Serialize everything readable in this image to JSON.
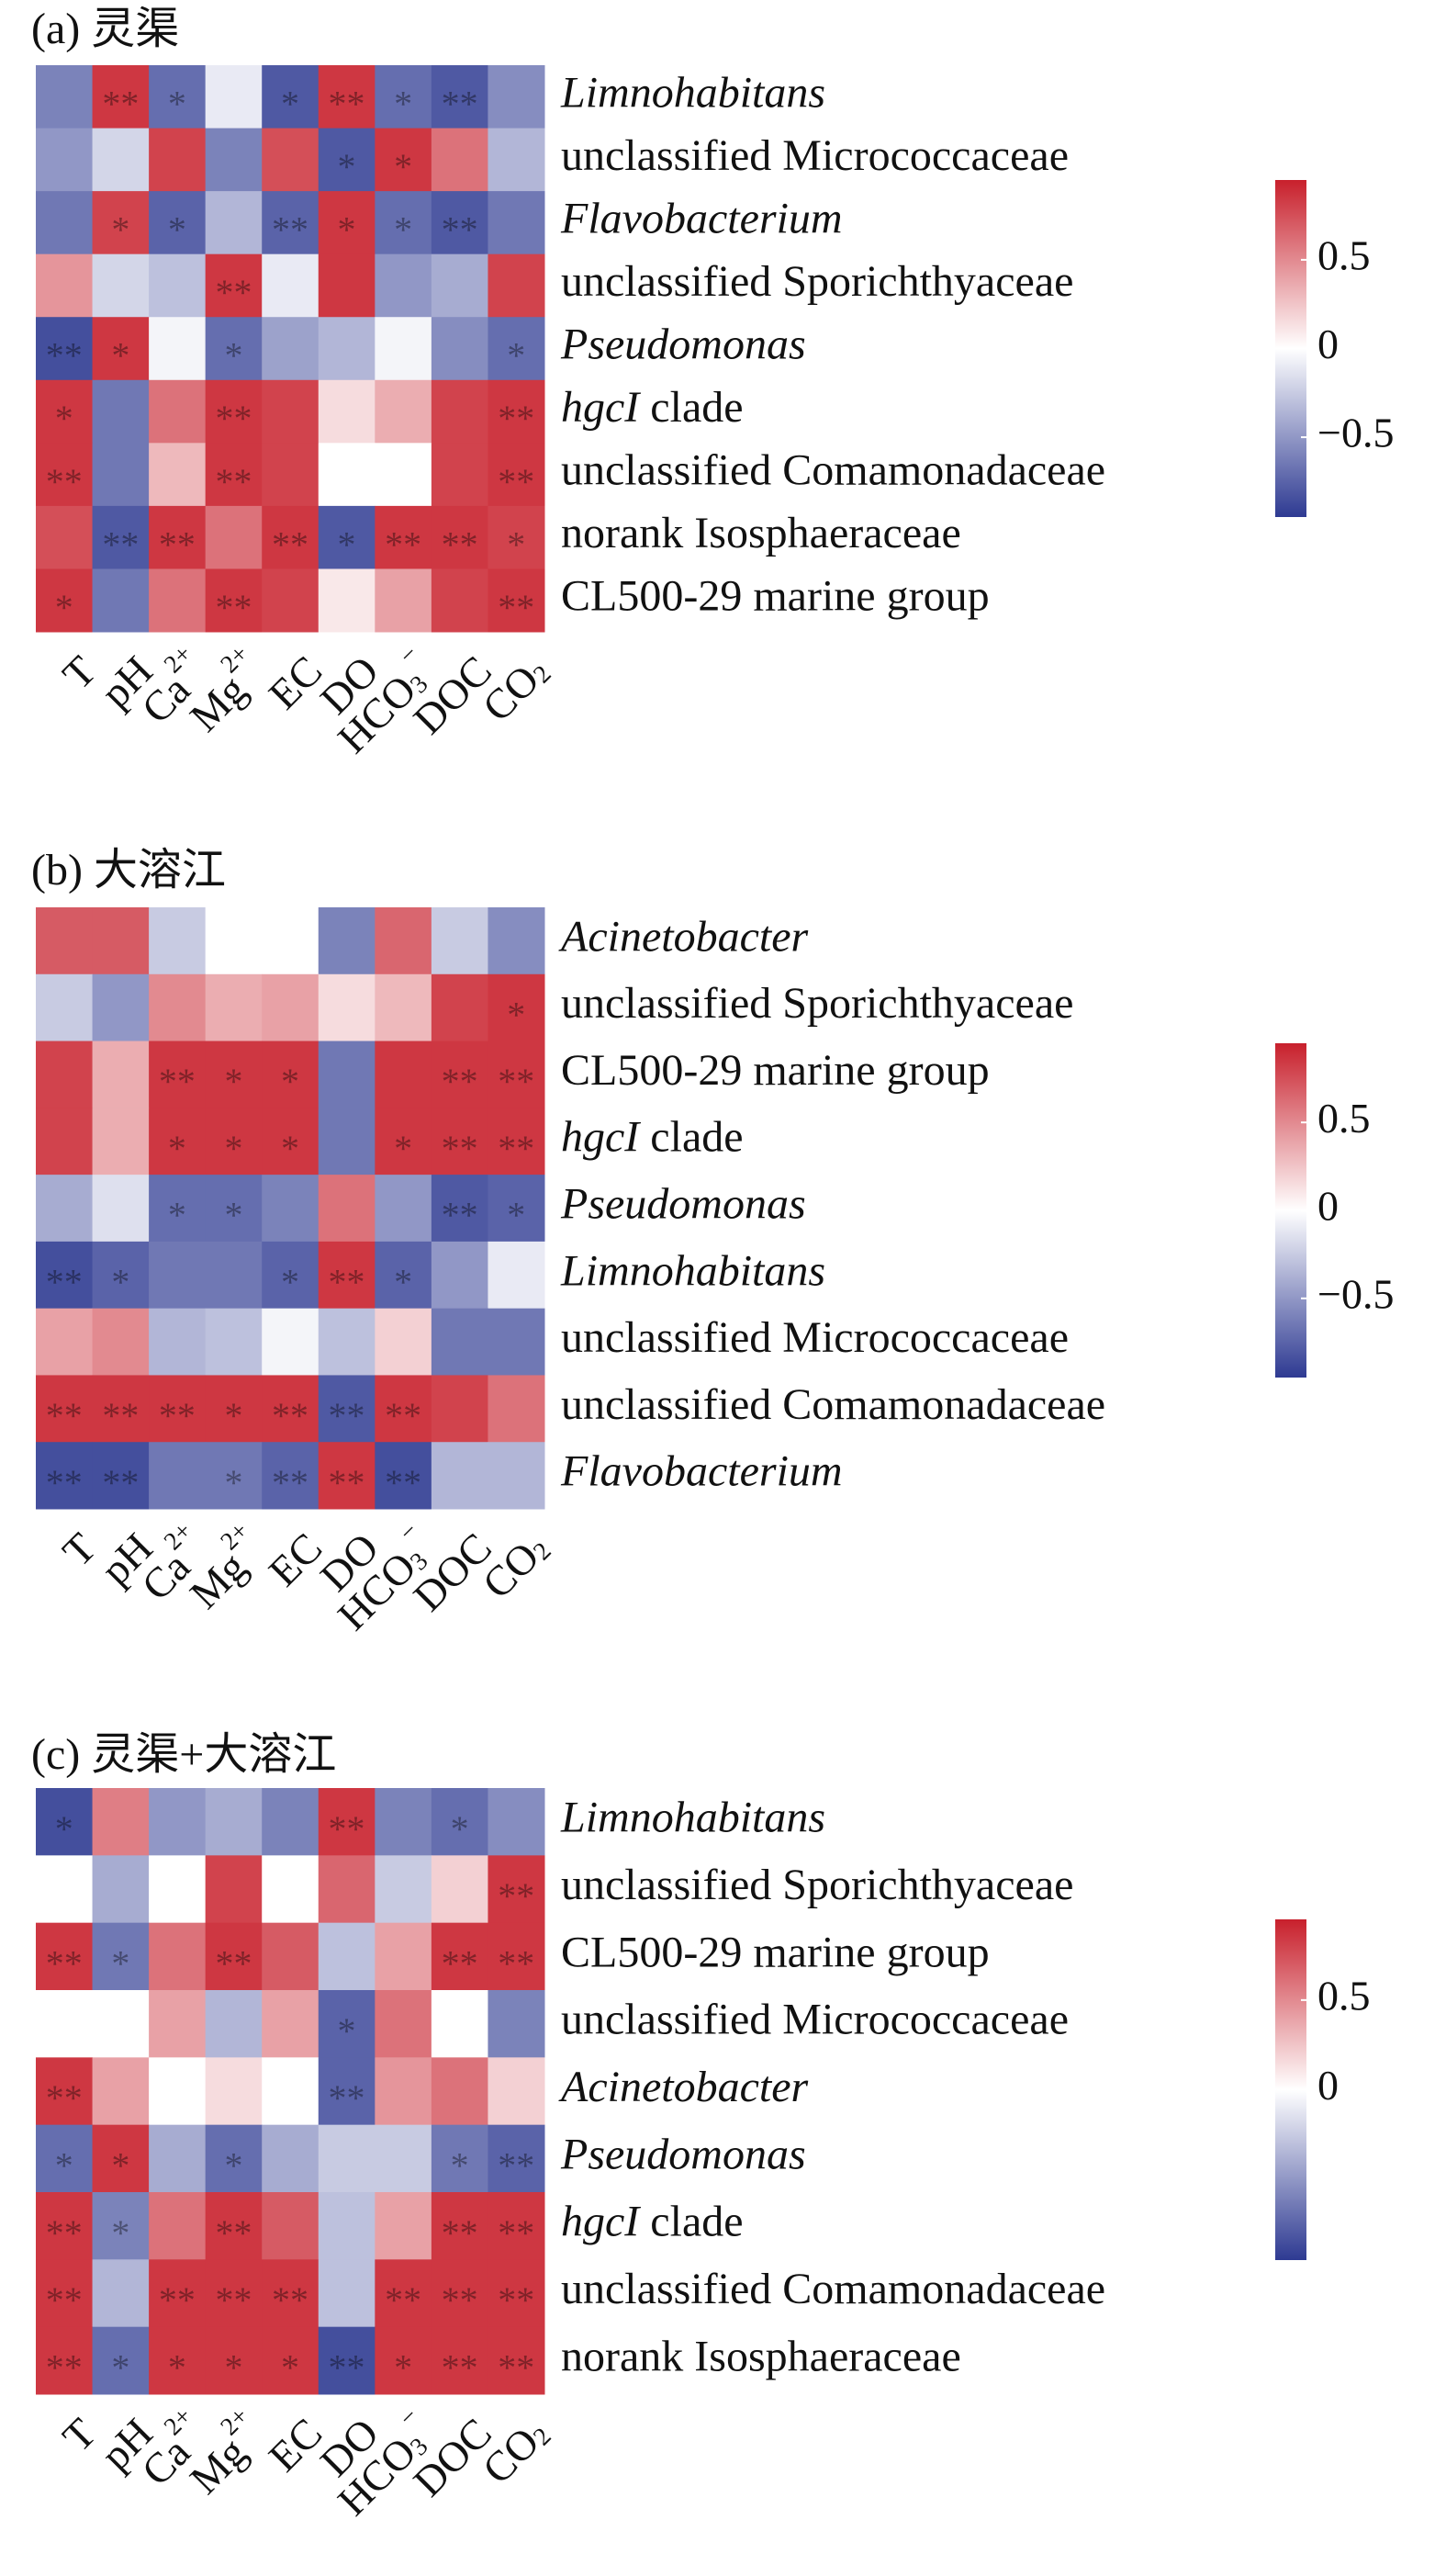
{
  "chart_data": [
    {
      "type": "heatmap",
      "title": "(a) 灵渠",
      "rows": [
        [
          {
            "text": "Limnohabitans",
            "italic": true
          }
        ],
        [
          {
            "text": "unclassified Micrococcaceae"
          }
        ],
        [
          {
            "text": "Flavobacterium",
            "italic": true
          }
        ],
        [
          {
            "text": "unclassified Sporichthyaceae"
          }
        ],
        [
          {
            "text": "Pseudomonas",
            "italic": true
          }
        ],
        [
          {
            "text": "hgcI",
            "italic": true
          },
          {
            "text": " clade"
          }
        ],
        [
          {
            "text": "unclassified Comamonadaceae"
          }
        ],
        [
          {
            "text": "norank Isosphaeraceae"
          }
        ],
        [
          {
            "text": "CL500-29 marine group"
          }
        ]
      ],
      "columns": [
        [
          {
            "text": "T"
          }
        ],
        [
          {
            "text": "pH"
          }
        ],
        [
          {
            "text": "Ca"
          },
          {
            "text": "2+",
            "sup": true
          }
        ],
        [
          {
            "text": "Mg"
          },
          {
            "text": "2+",
            "sup": true
          }
        ],
        [
          {
            "text": "EC"
          }
        ],
        [
          {
            "text": "DO"
          }
        ],
        [
          {
            "text": "HCO"
          },
          {
            "text": "3",
            "sub": true
          },
          {
            "text": "−",
            "sup": true
          }
        ],
        [
          {
            "text": "DOC"
          }
        ],
        [
          {
            "text": "CO"
          },
          {
            "text": "2",
            "sub": true
          }
        ]
      ],
      "values": [
        [
          -0.6,
          0.85,
          -0.7,
          -0.1,
          -0.8,
          0.85,
          -0.7,
          -0.8,
          -0.55
        ],
        [
          -0.5,
          -0.2,
          0.8,
          -0.6,
          0.75,
          -0.8,
          0.85,
          0.6,
          -0.35
        ],
        [
          -0.65,
          0.8,
          -0.75,
          -0.35,
          -0.75,
          0.85,
          -0.7,
          -0.8,
          -0.65
        ],
        [
          0.45,
          -0.2,
          -0.3,
          0.85,
          -0.1,
          0.85,
          -0.5,
          -0.4,
          0.8
        ],
        [
          -0.85,
          0.85,
          -0.05,
          -0.7,
          -0.45,
          -0.35,
          -0.05,
          -0.55,
          -0.7
        ],
        [
          0.85,
          -0.65,
          0.6,
          0.85,
          0.8,
          0.15,
          0.35,
          0.8,
          0.85
        ],
        [
          0.85,
          -0.65,
          0.3,
          0.85,
          0.8,
          0,
          0,
          0.8,
          0.85
        ],
        [
          0.75,
          -0.8,
          0.85,
          0.6,
          0.85,
          -0.8,
          0.85,
          0.85,
          0.8
        ],
        [
          0.85,
          -0.65,
          0.6,
          0.85,
          0.8,
          0.1,
          0.4,
          0.8,
          0.85
        ]
      ],
      "stars": [
        [
          null,
          "**",
          "*",
          null,
          "*",
          "**",
          "*",
          "**",
          null
        ],
        [
          null,
          null,
          null,
          null,
          null,
          "*",
          "*",
          null,
          null
        ],
        [
          null,
          "*",
          "*",
          null,
          "**",
          "*",
          "*",
          "**",
          null
        ],
        [
          null,
          null,
          null,
          "**",
          null,
          null,
          null,
          null,
          null
        ],
        [
          "**",
          "*",
          null,
          "*",
          null,
          null,
          null,
          null,
          "*"
        ],
        [
          "*",
          null,
          null,
          "**",
          null,
          null,
          null,
          null,
          "**"
        ],
        [
          "**",
          null,
          null,
          "**",
          null,
          null,
          null,
          null,
          "**"
        ],
        [
          null,
          "**",
          "**",
          null,
          "**",
          "*",
          "**",
          "**",
          "*"
        ],
        [
          "*",
          null,
          null,
          "**",
          null,
          null,
          null,
          null,
          "**"
        ]
      ],
      "zlim": [
        -0.95,
        0.95
      ],
      "colors": {
        "low": "#2e3a92",
        "mid": "#ffffff",
        "high": "#c8202c"
      },
      "colorbar_ticks": [
        0.5,
        0,
        {
          "value": -0.5,
          "label": "−0.5"
        }
      ]
    },
    {
      "type": "heatmap",
      "title": "(b) 大溶江",
      "rows": [
        [
          {
            "text": "Acinetobacter",
            "italic": true
          }
        ],
        [
          {
            "text": "unclassified Sporichthyaceae"
          }
        ],
        [
          {
            "text": "CL500-29 marine group"
          }
        ],
        [
          {
            "text": "hgcI",
            "italic": true
          },
          {
            "text": " clade"
          }
        ],
        [
          {
            "text": "Pseudomonas",
            "italic": true
          }
        ],
        [
          {
            "text": "Limnohabitans",
            "italic": true
          }
        ],
        [
          {
            "text": "unclassified Micrococcaceae"
          }
        ],
        [
          {
            "text": "unclassified Comamonadaceae"
          }
        ],
        [
          {
            "text": "Flavobacterium",
            "italic": true
          }
        ]
      ],
      "columns": [
        [
          {
            "text": "T"
          }
        ],
        [
          {
            "text": "pH"
          }
        ],
        [
          {
            "text": "Ca"
          },
          {
            "text": "2+",
            "sup": true
          }
        ],
        [
          {
            "text": "Mg"
          },
          {
            "text": "2+",
            "sup": true
          }
        ],
        [
          {
            "text": "EC"
          }
        ],
        [
          {
            "text": "DO"
          }
        ],
        [
          {
            "text": "HCO"
          },
          {
            "text": "3",
            "sub": true
          },
          {
            "text": "−",
            "sup": true
          }
        ],
        [
          {
            "text": "DOC"
          }
        ],
        [
          {
            "text": "CO"
          },
          {
            "text": "2",
            "sub": true
          }
        ]
      ],
      "values": [
        [
          0.7,
          0.7,
          -0.25,
          0,
          0,
          -0.6,
          0.65,
          -0.25,
          -0.55
        ],
        [
          -0.25,
          -0.5,
          0.5,
          0.35,
          0.4,
          0.15,
          0.3,
          0.8,
          0.85
        ],
        [
          0.8,
          0.35,
          0.85,
          0.85,
          0.85,
          -0.65,
          0.85,
          0.85,
          0.85
        ],
        [
          0.8,
          0.35,
          0.85,
          0.85,
          0.85,
          -0.65,
          0.85,
          0.85,
          0.85
        ],
        [
          -0.4,
          -0.15,
          -0.7,
          -0.7,
          -0.6,
          0.6,
          -0.5,
          -0.8,
          -0.75
        ],
        [
          -0.85,
          -0.75,
          -0.65,
          -0.65,
          -0.75,
          0.85,
          -0.75,
          -0.5,
          -0.1
        ],
        [
          0.4,
          0.5,
          -0.35,
          -0.3,
          -0.05,
          -0.3,
          0.2,
          -0.65,
          -0.65
        ],
        [
          0.85,
          0.85,
          0.85,
          0.85,
          0.85,
          -0.8,
          0.85,
          0.8,
          0.6
        ],
        [
          -0.85,
          -0.85,
          -0.65,
          -0.65,
          -0.75,
          0.85,
          -0.85,
          -0.35,
          -0.35
        ]
      ],
      "stars": [
        [
          null,
          null,
          null,
          null,
          null,
          null,
          null,
          null,
          null
        ],
        [
          null,
          null,
          null,
          null,
          null,
          null,
          null,
          null,
          "*"
        ],
        [
          null,
          null,
          "**",
          "*",
          "*",
          null,
          null,
          "**",
          "**"
        ],
        [
          null,
          null,
          "*",
          "*",
          "*",
          null,
          "*",
          "**",
          "**"
        ],
        [
          null,
          null,
          "*",
          "*",
          null,
          null,
          null,
          "**",
          "*"
        ],
        [
          "**",
          "*",
          null,
          null,
          "*",
          "**",
          "*",
          null,
          null
        ],
        [
          null,
          null,
          null,
          null,
          null,
          null,
          null,
          null,
          null
        ],
        [
          "**",
          "**",
          "**",
          "*",
          "**",
          "**",
          "**",
          null,
          null
        ],
        [
          "**",
          "**",
          null,
          "*",
          "**",
          "**",
          "**",
          null,
          null
        ]
      ],
      "zlim": [
        -0.95,
        0.95
      ],
      "colors": {
        "low": "#2e3a92",
        "mid": "#ffffff",
        "high": "#c8202c"
      },
      "colorbar_ticks": [
        0.5,
        0,
        {
          "value": -0.5,
          "label": "−0.5"
        }
      ]
    },
    {
      "type": "heatmap",
      "title": "(c) 灵渠+大溶江",
      "rows": [
        [
          {
            "text": "Limnohabitans",
            "italic": true
          }
        ],
        [
          {
            "text": "unclassified Sporichthyaceae"
          }
        ],
        [
          {
            "text": "CL500-29 marine group"
          }
        ],
        [
          {
            "text": "unclassified Micrococcaceae"
          }
        ],
        [
          {
            "text": "Acinetobacter",
            "italic": true
          }
        ],
        [
          {
            "text": "Pseudomonas",
            "italic": true
          }
        ],
        [
          {
            "text": "hgcI",
            "italic": true
          },
          {
            "text": " clade"
          }
        ],
        [
          {
            "text": "unclassified Comamonadaceae"
          }
        ],
        [
          {
            "text": "norank Isosphaeraceae"
          }
        ]
      ],
      "columns": [
        [
          {
            "text": "T"
          }
        ],
        [
          {
            "text": "pH"
          }
        ],
        [
          {
            "text": "Ca"
          },
          {
            "text": "2+",
            "sup": true
          }
        ],
        [
          {
            "text": "Mg"
          },
          {
            "text": "2+",
            "sup": true
          }
        ],
        [
          {
            "text": "EC"
          }
        ],
        [
          {
            "text": "DO"
          }
        ],
        [
          {
            "text": "HCO"
          },
          {
            "text": "3",
            "sub": true
          },
          {
            "text": "−",
            "sup": true
          }
        ],
        [
          {
            "text": "DOC"
          }
        ],
        [
          {
            "text": "CO"
          },
          {
            "text": "2",
            "sub": true
          }
        ]
      ],
      "values": [
        [
          -0.85,
          0.55,
          -0.5,
          -0.4,
          -0.6,
          0.85,
          -0.6,
          -0.7,
          -0.55
        ],
        [
          0,
          -0.4,
          0,
          0.8,
          0,
          0.65,
          -0.25,
          0.2,
          0.85
        ],
        [
          0.85,
          -0.65,
          0.6,
          0.85,
          0.7,
          -0.3,
          0.4,
          0.85,
          0.85
        ],
        [
          0,
          0,
          0.4,
          -0.35,
          0.4,
          -0.75,
          0.6,
          0,
          -0.6
        ],
        [
          0.85,
          0.4,
          0,
          0.15,
          0,
          -0.75,
          0.45,
          0.6,
          0.2
        ],
        [
          -0.7,
          0.85,
          -0.4,
          -0.7,
          -0.4,
          -0.25,
          -0.25,
          -0.65,
          -0.75
        ],
        [
          0.85,
          -0.6,
          0.6,
          0.85,
          0.7,
          -0.3,
          0.4,
          0.85,
          0.85
        ],
        [
          0.85,
          -0.35,
          0.85,
          0.85,
          0.85,
          -0.3,
          0.85,
          0.85,
          0.85
        ],
        [
          0.85,
          -0.7,
          0.85,
          0.85,
          0.85,
          -0.85,
          0.85,
          0.85,
          0.85
        ]
      ],
      "stars": [
        [
          "*",
          null,
          null,
          null,
          null,
          "**",
          null,
          "*",
          null
        ],
        [
          null,
          null,
          null,
          null,
          null,
          null,
          null,
          null,
          "**"
        ],
        [
          "**",
          "*",
          null,
          "**",
          null,
          null,
          null,
          "**",
          "**"
        ],
        [
          null,
          null,
          null,
          null,
          null,
          "*",
          null,
          null,
          null
        ],
        [
          "**",
          null,
          null,
          null,
          null,
          "**",
          null,
          null,
          null
        ],
        [
          "*",
          "*",
          null,
          "*",
          null,
          null,
          null,
          "*",
          "**"
        ],
        [
          "**",
          "*",
          null,
          "**",
          null,
          null,
          null,
          "**",
          "**"
        ],
        [
          "**",
          null,
          "**",
          "**",
          "**",
          null,
          "**",
          "**",
          "**"
        ],
        [
          "**",
          "*",
          "*",
          "*",
          "*",
          "**",
          "*",
          "**",
          "**"
        ]
      ],
      "zlim": [
        -0.95,
        0.95
      ],
      "colors": {
        "low": "#2e3a92",
        "mid": "#ffffff",
        "high": "#c8202c"
      },
      "colorbar_ticks": [
        0.5,
        0
      ]
    }
  ]
}
